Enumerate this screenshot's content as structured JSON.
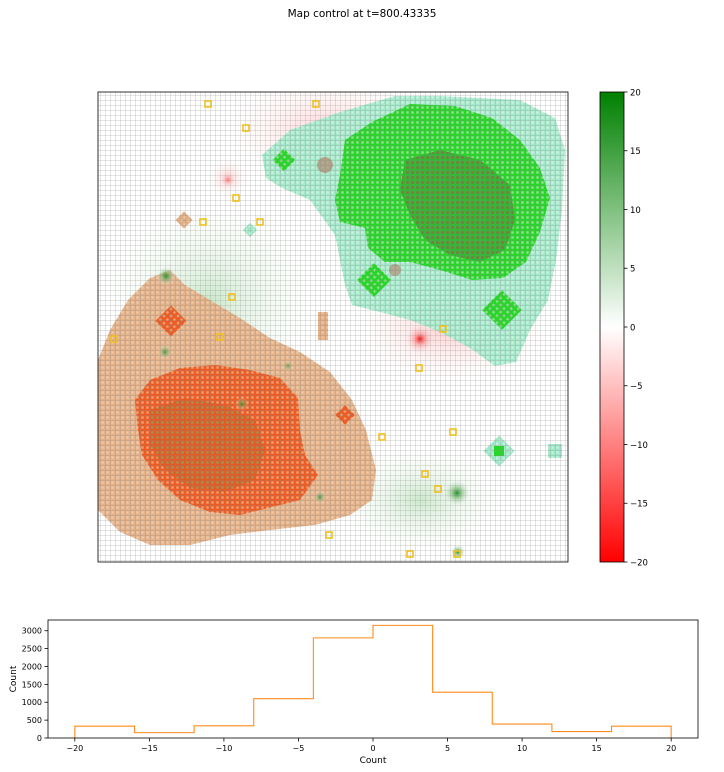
{
  "figure": {
    "title": "Map control at t=800.43335"
  },
  "colorbar": {
    "min": -20,
    "max": 20,
    "ticks": [
      "20",
      "15",
      "10",
      "5",
      "0",
      "−5",
      "−10",
      "−15",
      "−20"
    ],
    "tick_values": [
      20,
      15,
      10,
      5,
      0,
      -5,
      -10,
      -15,
      -20
    ],
    "colors": {
      "low": "#ff0000",
      "mid": "#ffffff",
      "high": "#008000"
    }
  },
  "map": {
    "type": "heatmap",
    "colors": {
      "green_team": "#22dd22",
      "green_zone": "#a8ecd0",
      "orange_team": "#ee5522",
      "orange_zone": "#e8b890",
      "neutral_red": "#ffd8d8",
      "marker": "#f0c020",
      "grid": "#808080"
    }
  },
  "chart_data": {
    "type": "bar",
    "xlabel": "Count",
    "ylabel": "Count",
    "xlim": [
      -21.8,
      21.8
    ],
    "ylim": [
      0,
      3300
    ],
    "bin_edges": [
      -20,
      -16,
      -12,
      -8,
      -4,
      0,
      4,
      8,
      12,
      16,
      20
    ],
    "values": [
      330,
      150,
      340,
      1100,
      2800,
      3150,
      1280,
      390,
      180,
      330
    ],
    "x_ticks": [
      -20,
      -15,
      -10,
      -5,
      0,
      5,
      10,
      15,
      20
    ],
    "x_tick_labels": [
      "−20",
      "−15",
      "−10",
      "−5",
      "0",
      "5",
      "10",
      "15",
      "20"
    ],
    "y_ticks": [
      0,
      500,
      1000,
      1500,
      2000,
      2500,
      3000
    ],
    "y_tick_labels": [
      "0",
      "500",
      "1000",
      "1500",
      "2000",
      "2500",
      "3000"
    ],
    "line_color": "#ff8c1a"
  }
}
